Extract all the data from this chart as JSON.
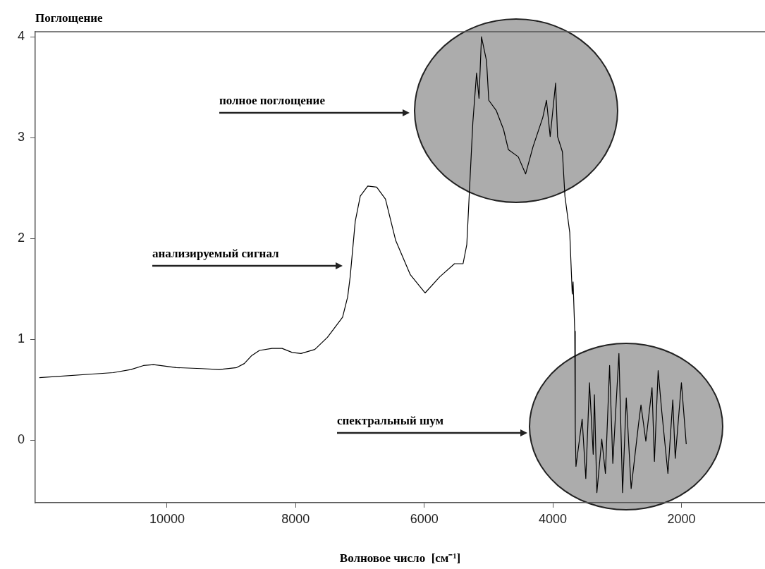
{
  "chart_data": {
    "type": "line",
    "ylabel": "Поглощение",
    "xlabel": "Волновое число  [см⁻¹]",
    "x": [
      11987,
      10838,
      10563,
      10367,
      10210,
      9857,
      9465,
      9191,
      8917,
      8799,
      8682,
      8563,
      8368,
      8211,
      8054,
      7917,
      7702,
      7505,
      7270,
      7191,
      7152,
      7073,
      6995,
      6878,
      6740,
      6603,
      6444,
      6216,
      5987,
      5759,
      5529,
      5396,
      5338,
      5301,
      5244,
      5186,
      5148,
      5110,
      5031,
      4996,
      4881,
      4766,
      4691,
      4538,
      4423,
      4308,
      4156,
      4099,
      4041,
      3957,
      3926,
      3851,
      3812,
      3737,
      3698,
      3685,
      3659,
      3651,
      3640,
      3544,
      3487,
      3430,
      3372,
      3353,
      3315,
      3239,
      3182,
      3117,
      3067,
      2972,
      2915,
      2858,
      2782,
      2667,
      2629,
      2553,
      2457,
      2420,
      2362,
      2305,
      2210,
      2134,
      2096,
      2000,
      1943,
      1925
    ],
    "values": [
      0.62,
      0.67,
      0.7,
      0.74,
      0.75,
      0.72,
      0.71,
      0.7,
      0.72,
      0.76,
      0.84,
      0.89,
      0.91,
      0.91,
      0.87,
      0.86,
      0.9,
      1.02,
      1.22,
      1.42,
      1.62,
      2.17,
      2.42,
      2.52,
      2.51,
      2.39,
      1.98,
      1.64,
      1.46,
      1.62,
      1.75,
      1.75,
      1.94,
      2.42,
      3.15,
      3.64,
      3.39,
      4.0,
      3.76,
      3.37,
      3.27,
      3.08,
      2.88,
      2.81,
      2.64,
      2.91,
      3.2,
      3.37,
      3.01,
      3.54,
      3.01,
      2.86,
      2.42,
      2.06,
      1.45,
      1.57,
      1.08,
      0.11,
      -0.26,
      0.21,
      -0.38,
      0.57,
      -0.14,
      0.45,
      -0.52,
      0.01,
      -0.33,
      0.74,
      -0.23,
      0.86,
      -0.52,
      0.42,
      -0.48,
      0.16,
      0.35,
      -0.01,
      0.52,
      -0.21,
      0.69,
      0.28,
      -0.33,
      0.4,
      -0.18,
      0.57,
      0.11,
      -0.04
    ],
    "color": "#000000",
    "line_style": "solid",
    "xlim": [
      12050,
      700
    ],
    "ylim": [
      -0.62,
      4.05
    ],
    "xticks": [
      10000,
      8000,
      6000,
      4000,
      2000
    ],
    "yticks": [
      0,
      1,
      2,
      3,
      4
    ],
    "annotations": [
      "полное поглощение",
      "анализируемый сигнал",
      "спектральный шум"
    ]
  }
}
